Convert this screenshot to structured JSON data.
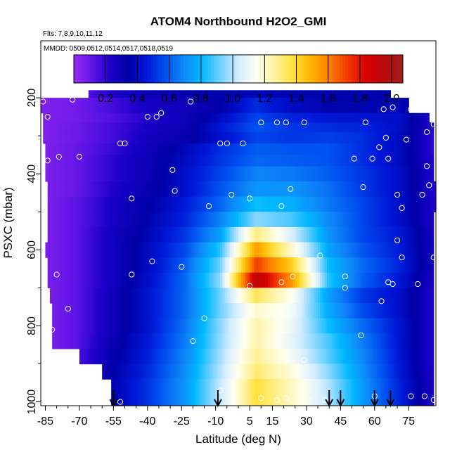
{
  "title": "ATOM4 Northbound H2O2_GMI",
  "flights_label": "Flts: 7,8,9,10,11,12",
  "dates_label": "MMDD: 0509,0512,0514,0517,0518,0519",
  "chart_data": {
    "type": "heatmap",
    "title": "ATOM4 Northbound H2O2_GMI",
    "xlabel": "Latitude (deg N)",
    "ylabel": "PSXC (mbar)",
    "xlim": [
      -87,
      87
    ],
    "ylim": [
      1010,
      50
    ],
    "x_ticks": [
      -85,
      -70,
      -55,
      -40,
      -25,
      -10,
      5,
      15,
      30,
      45,
      60,
      75
    ],
    "y_ticks": [
      200,
      400,
      600,
      800,
      1000
    ],
    "colorbar": {
      "range": [
        0.0,
        2.07
      ],
      "ticks": [
        0.2,
        0.4,
        0.6,
        0.8,
        1.0,
        1.2,
        1.4,
        1.6,
        1.8,
        2.0
      ],
      "colors": [
        "#9a2cf0",
        "#5e14e6",
        "#1a00c8",
        "#0000a8",
        "#0018d8",
        "#0050f0",
        "#0f88f8",
        "#00b8ff",
        "#70d0ff",
        "#d2ecff",
        "#fffff0",
        "#fff2a0",
        "#ffe03a",
        "#ffb200",
        "#ff7c00",
        "#f03800",
        "#d80000",
        "#b80a0a",
        "#a01e1e"
      ]
    },
    "bands": [
      {
        "p": [
          180,
          200
        ],
        "x_range": [
          -66,
          67
        ],
        "values": [
          0.06,
          0.1,
          0.22,
          0.3,
          0.32,
          0.36,
          0.38,
          0.36,
          0.36,
          0.36,
          0.34,
          0.12
        ]
      },
      {
        "p": [
          200,
          240
        ],
        "x_range": [
          -87,
          75
        ],
        "values": [
          0.05,
          0.08,
          0.16,
          0.25,
          0.28,
          0.34,
          0.5,
          0.4,
          0.36,
          0.36,
          0.38,
          0.16
        ]
      },
      {
        "p": [
          240,
          265
        ],
        "x_range": [
          -86,
          84
        ],
        "values": [
          0.05,
          0.08,
          0.14,
          0.22,
          0.28,
          0.4,
          0.55,
          0.48,
          0.45,
          0.44,
          0.42,
          0.2
        ]
      },
      {
        "p": [
          265,
          290
        ],
        "x_range": [
          -86,
          86
        ],
        "values": [
          0.05,
          0.09,
          0.16,
          0.24,
          0.3,
          0.45,
          0.58,
          0.52,
          0.5,
          0.48,
          0.42,
          0.2
        ]
      },
      {
        "p": [
          290,
          320
        ],
        "x_range": [
          -86,
          86
        ],
        "values": [
          0.05,
          0.09,
          0.16,
          0.26,
          0.32,
          0.42,
          0.55,
          0.52,
          0.54,
          0.5,
          0.4,
          0.18
        ]
      },
      {
        "p": [
          320,
          350
        ],
        "x_range": [
          -85,
          86
        ],
        "values": [
          0.05,
          0.1,
          0.18,
          0.28,
          0.38,
          0.5,
          0.6,
          0.58,
          0.58,
          0.5,
          0.4,
          0.18
        ]
      },
      {
        "p": [
          350,
          380
        ],
        "x_range": [
          -85,
          86
        ],
        "values": [
          0.05,
          0.1,
          0.2,
          0.3,
          0.4,
          0.52,
          0.62,
          0.6,
          0.58,
          0.5,
          0.4,
          0.2
        ]
      },
      {
        "p": [
          380,
          420
        ],
        "x_range": [
          -85,
          86
        ],
        "values": [
          0.05,
          0.1,
          0.2,
          0.3,
          0.42,
          0.55,
          0.68,
          0.66,
          0.6,
          0.52,
          0.42,
          0.2
        ]
      },
      {
        "p": [
          420,
          460
        ],
        "x_range": [
          -84,
          87
        ],
        "values": [
          0.05,
          0.1,
          0.22,
          0.32,
          0.42,
          0.58,
          0.72,
          0.72,
          0.64,
          0.52,
          0.42,
          0.2
        ]
      },
      {
        "p": [
          460,
          500
        ],
        "x_range": [
          -84,
          87
        ],
        "values": [
          0.05,
          0.12,
          0.24,
          0.34,
          0.46,
          0.62,
          0.82,
          0.78,
          0.66,
          0.55,
          0.42,
          0.22
        ]
      },
      {
        "p": [
          500,
          540
        ],
        "x_range": [
          -84,
          86
        ],
        "values": [
          0.05,
          0.12,
          0.24,
          0.36,
          0.48,
          0.68,
          0.95,
          0.88,
          0.7,
          0.55,
          0.42,
          0.22
        ]
      },
      {
        "p": [
          540,
          580
        ],
        "x_range": [
          -84,
          86
        ],
        "values": [
          0.05,
          0.12,
          0.26,
          0.38,
          0.52,
          0.75,
          1.3,
          1.05,
          0.72,
          0.55,
          0.45,
          0.25
        ]
      },
      {
        "p": [
          580,
          620
        ],
        "x_range": [
          -85,
          86
        ],
        "values": [
          0.05,
          0.12,
          0.26,
          0.4,
          0.56,
          0.85,
          1.55,
          1.2,
          0.76,
          0.58,
          0.46,
          0.25
        ]
      },
      {
        "p": [
          620,
          660
        ],
        "x_range": [
          -84,
          86
        ],
        "values": [
          0.05,
          0.12,
          0.26,
          0.4,
          0.6,
          0.92,
          1.72,
          1.42,
          0.82,
          0.62,
          0.48,
          0.25
        ]
      },
      {
        "p": [
          660,
          700
        ],
        "x_range": [
          -84,
          86
        ],
        "values": [
          0.05,
          0.12,
          0.26,
          0.42,
          0.62,
          0.96,
          1.95,
          1.55,
          0.85,
          0.6,
          0.45,
          0.22
        ]
      },
      {
        "p": [
          700,
          740
        ],
        "x_range": [
          -83,
          86
        ],
        "values": [
          0.05,
          0.12,
          0.28,
          0.44,
          0.62,
          0.92,
          1.35,
          1.15,
          0.75,
          0.52,
          0.42,
          0.2
        ]
      },
      {
        "p": [
          740,
          780
        ],
        "x_range": [
          -82,
          86
        ],
        "values": [
          0.05,
          0.12,
          0.28,
          0.44,
          0.62,
          0.92,
          1.2,
          1.12,
          0.78,
          0.56,
          0.42,
          0.2
        ]
      },
      {
        "p": [
          780,
          820
        ],
        "x_range": [
          -82,
          86
        ],
        "values": [
          0.05,
          0.12,
          0.28,
          0.44,
          0.64,
          0.95,
          1.25,
          1.1,
          0.82,
          0.62,
          0.44,
          0.2
        ]
      },
      {
        "p": [
          820,
          860
        ],
        "x_range": [
          -82,
          86
        ],
        "values": [
          0.05,
          0.12,
          0.3,
          0.46,
          0.66,
          0.96,
          1.25,
          1.08,
          0.88,
          0.66,
          0.44,
          0.2
        ]
      },
      {
        "p": [
          860,
          900
        ],
        "x_range": [
          -70,
          86
        ],
        "values": [
          0.06,
          0.14,
          0.32,
          0.48,
          0.68,
          0.98,
          1.28,
          1.12,
          0.9,
          0.68,
          0.45,
          0.2
        ]
      },
      {
        "p": [
          900,
          940
        ],
        "x_range": [
          -60,
          86
        ],
        "values": [
          0.06,
          0.16,
          0.34,
          0.5,
          0.7,
          1.0,
          1.32,
          1.18,
          0.95,
          0.7,
          0.46,
          0.2
        ]
      },
      {
        "p": [
          940,
          1010
        ],
        "x_range": [
          -56,
          86
        ],
        "values": [
          0.08,
          0.18,
          0.36,
          0.52,
          0.72,
          1.02,
          1.38,
          1.22,
          1.0,
          0.72,
          0.48,
          0.22
        ]
      }
    ],
    "obs_points": [
      [
        -86,
        210
      ],
      [
        -84,
        250
      ],
      [
        -79,
        355
      ],
      [
        -73,
        205
      ],
      [
        -52,
        320
      ],
      [
        -50,
        320
      ],
      [
        -47,
        465
      ],
      [
        -40,
        250
      ],
      [
        -36,
        250
      ],
      [
        -34,
        240
      ],
      [
        -29,
        390
      ],
      [
        -28,
        445
      ],
      [
        -21,
        210
      ],
      [
        -13,
        485
      ],
      [
        -8,
        320
      ],
      [
        -5,
        320
      ],
      [
        -3,
        455
      ],
      [
        2,
        320
      ],
      [
        5,
        465
      ],
      [
        10,
        265
      ],
      [
        17,
        265
      ],
      [
        19,
        485
      ],
      [
        21,
        265
      ],
      [
        23,
        440
      ],
      [
        29,
        265
      ],
      [
        51,
        360
      ],
      [
        55,
        435
      ],
      [
        56,
        265
      ],
      [
        59,
        360
      ],
      [
        62,
        330
      ],
      [
        64,
        230
      ],
      [
        65,
        305
      ],
      [
        66,
        360
      ],
      [
        68,
        225
      ],
      [
        70,
        455
      ],
      [
        72,
        490
      ],
      [
        74,
        310
      ],
      [
        76,
        230
      ],
      [
        79,
        220
      ],
      [
        81,
        455
      ],
      [
        83,
        380
      ],
      [
        83,
        290
      ],
      [
        86,
        270
      ],
      [
        84,
        430
      ],
      [
        -84,
        365
      ],
      [
        -70,
        355
      ],
      [
        -89,
        620
      ],
      [
        -80,
        665
      ],
      [
        -75,
        755
      ],
      [
        -47,
        665
      ],
      [
        -38,
        630
      ],
      [
        -25,
        645
      ],
      [
        -20,
        840
      ],
      [
        -15,
        780
      ],
      [
        -8,
        970
      ],
      [
        -2,
        995
      ],
      [
        2,
        850
      ],
      [
        5,
        695
      ],
      [
        10,
        990
      ],
      [
        17,
        995
      ],
      [
        19,
        685
      ],
      [
        21,
        990
      ],
      [
        24,
        670
      ],
      [
        29,
        890
      ],
      [
        31,
        995
      ],
      [
        36,
        615
      ],
      [
        38,
        995
      ],
      [
        47,
        670
      ],
      [
        47,
        700
      ],
      [
        54,
        825
      ],
      [
        60,
        985
      ],
      [
        63,
        735
      ],
      [
        66,
        685
      ],
      [
        68,
        690
      ],
      [
        70,
        575
      ],
      [
        72,
        620
      ],
      [
        76,
        985
      ],
      [
        79,
        690
      ],
      [
        82,
        985
      ],
      [
        86,
        620
      ],
      [
        86,
        995
      ],
      [
        -82,
        810
      ],
      [
        -74,
        900
      ],
      [
        -73,
        950
      ],
      [
        -72,
        1000
      ],
      [
        -67,
        985
      ],
      [
        -52,
        1000
      ]
    ],
    "arrows_lat": [
      -55,
      -9,
      40,
      45,
      60,
      67
    ],
    "grid": false,
    "legend": "none"
  }
}
